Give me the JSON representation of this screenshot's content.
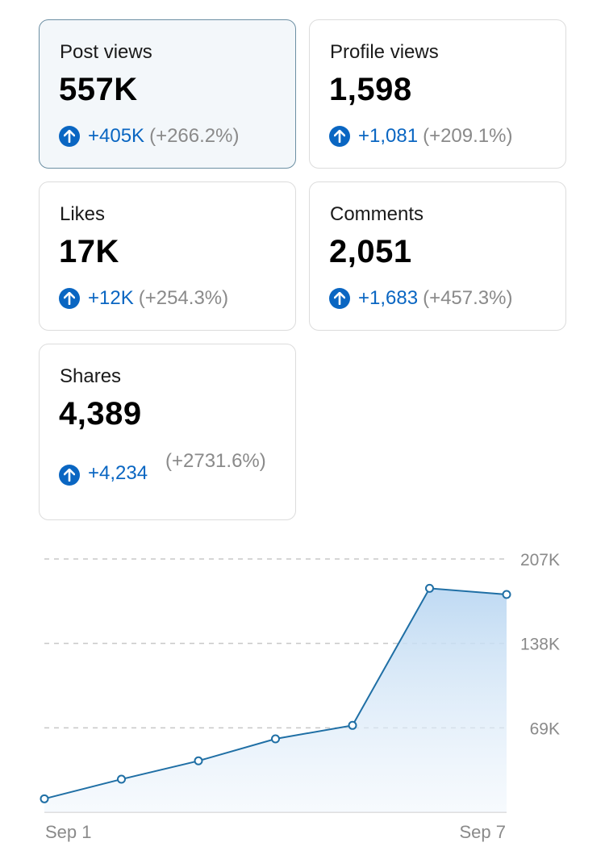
{
  "colors": {
    "accent": "#0a66c2",
    "muted": "#8a8a8a",
    "line": "#1f6fa5",
    "selected_bg": "#f3f7fa",
    "selected_border": "#6c8fa3"
  },
  "cards": [
    {
      "label": "Post views",
      "value": "557K",
      "delta": "+405K",
      "delta_pct": "(+266.2%)",
      "selected": true,
      "icon": "arrow-up-circle-icon"
    },
    {
      "label": "Profile views",
      "value": "1,598",
      "delta": "+1,081",
      "delta_pct": "(+209.1%)",
      "selected": false,
      "icon": "arrow-up-circle-icon"
    },
    {
      "label": "Likes",
      "value": "17K",
      "delta": "+12K",
      "delta_pct": "(+254.3%)",
      "selected": false,
      "icon": "arrow-up-circle-icon"
    },
    {
      "label": "Comments",
      "value": "2,051",
      "delta": "+1,683",
      "delta_pct": "(+457.3%)",
      "selected": false,
      "icon": "arrow-up-circle-icon"
    },
    {
      "label": "Shares",
      "value": "4,389",
      "delta": "+4,234",
      "delta_pct": "(+2731.6%)",
      "selected": false,
      "icon": "arrow-up-circle-icon"
    }
  ],
  "chart_data": {
    "type": "area",
    "x": [
      "Sep 1",
      "Sep 2",
      "Sep 3",
      "Sep 4",
      "Sep 5",
      "Sep 6",
      "Sep 7"
    ],
    "values": [
      11000,
      27000,
      42000,
      60000,
      71000,
      183000,
      178000
    ],
    "ylim": [
      0,
      207000
    ],
    "y_ticks": [
      69000,
      138000,
      207000
    ],
    "y_tick_labels": [
      "69K",
      "138K",
      "207K"
    ],
    "x_tick_labels": [
      "Sep 1",
      "Sep 7"
    ],
    "grid": "dashed-horizontal",
    "axis_position": "right"
  }
}
